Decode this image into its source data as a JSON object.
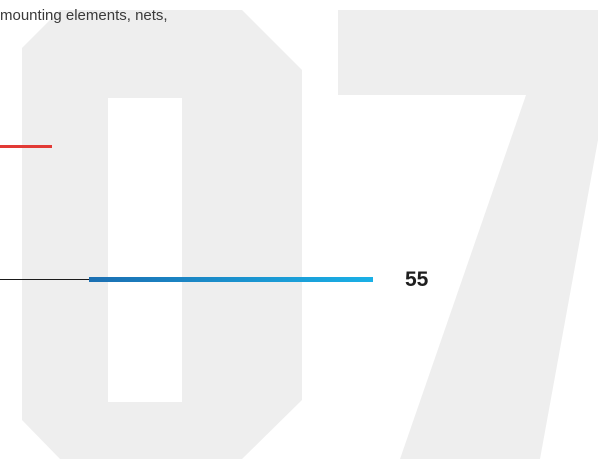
{
  "body_text": "mounting elements, nets,",
  "page_number": "55",
  "background_numeral": "07",
  "colors": {
    "accent_rule": "#e23a35",
    "bar_start": "#1b6fb2",
    "bar_end": "#1ab0e6",
    "numeral_fill": "#eeeeee",
    "text": "#3a3a3a"
  }
}
